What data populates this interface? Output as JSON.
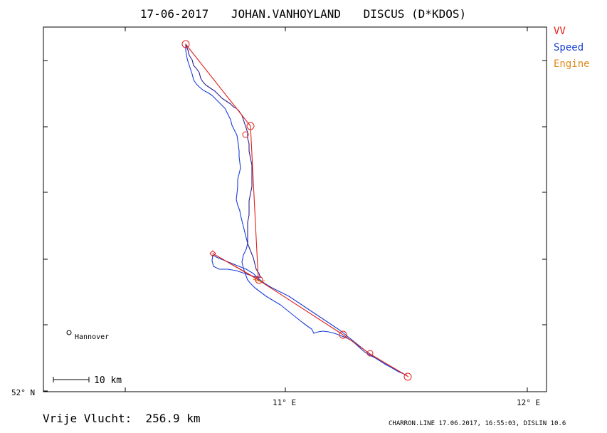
{
  "header": {
    "date": "17-06-2017",
    "pilot": "JOHAN.VANHOYLAND",
    "glider": "DISCUS (D*KDOS)"
  },
  "legend": {
    "vv": "VV",
    "speed": "Speed",
    "engine": "Engine",
    "colors": {
      "vv": "#e0201a",
      "speed": "#1a3fd6",
      "engine": "#e08a1a"
    }
  },
  "axes": {
    "lat_label": "52° N",
    "lon_11_label": "11° E",
    "lon_12_label": "12° E"
  },
  "map": {
    "city": "Hannover",
    "scale_label": "10 km"
  },
  "footer": {
    "distance": "Vrije Vlucht:  256.9 km",
    "credits": "CHARRON.LINE 17.06.2017, 16:55:03, DISLIN 10.6"
  }
}
